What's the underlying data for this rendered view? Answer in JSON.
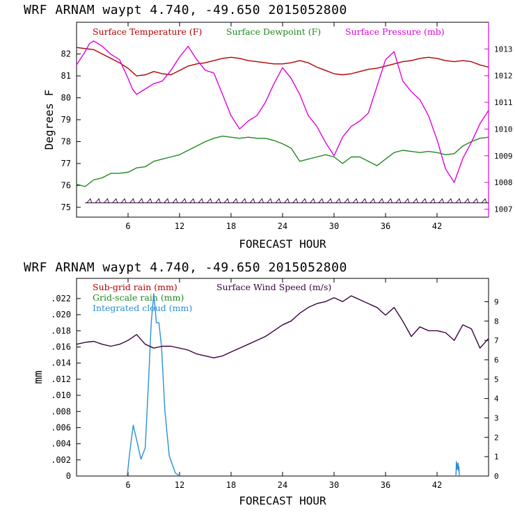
{
  "colors": {
    "temperature": "#b00000",
    "dewpoint": "#1e8a1e",
    "pressure": "#e000e0",
    "subgrid_rain": "#b00000",
    "gridscale_rain": "#1e8a1e",
    "cloud": "#2a8fd6",
    "wind": "#3a0040",
    "barb": "#2a0035"
  },
  "chart_data": [
    {
      "type": "line",
      "title": "WRF   ARNAM waypt     4.740, -49.650  2015052800",
      "xlabel": "FORECAST HOUR",
      "ylabel": "Degrees F",
      "x_ticks": [
        6,
        12,
        18,
        24,
        30,
        36,
        42
      ],
      "xlim": [
        0,
        48
      ],
      "y_ticks": [
        75,
        76,
        77,
        78,
        79,
        80,
        81,
        82
      ],
      "ylim": [
        74.55,
        83.45
      ],
      "y2_ticks": [
        1007,
        1008,
        1009,
        1010,
        1011,
        1012,
        1013
      ],
      "y2lim": [
        1006.7,
        1014.0
      ],
      "legend": [
        "Surface Temperature (F)",
        "Surface Dewpoint (F)",
        "Surface Pressure (mb)"
      ],
      "wind_barbs_row_value": 75.2,
      "series": [
        {
          "name": "Surface Temperature (F)",
          "axis": "left",
          "x": [
            0,
            1,
            2,
            3,
            4,
            5,
            6,
            7,
            8,
            9,
            10,
            11,
            12,
            13,
            14,
            15,
            16,
            17,
            18,
            19,
            20,
            21,
            22,
            23,
            24,
            25,
            26,
            27,
            28,
            29,
            30,
            31,
            32,
            33,
            34,
            35,
            36,
            37,
            38,
            39,
            40,
            41,
            42,
            43,
            44,
            45,
            46,
            47,
            48
          ],
          "values": [
            82.3,
            82.25,
            82.2,
            82.0,
            81.8,
            81.6,
            81.35,
            81.0,
            81.05,
            81.2,
            81.1,
            81.05,
            81.25,
            81.45,
            81.55,
            81.6,
            81.7,
            81.8,
            81.85,
            81.8,
            81.7,
            81.65,
            81.6,
            81.55,
            81.55,
            81.6,
            81.7,
            81.6,
            81.4,
            81.25,
            81.1,
            81.05,
            81.1,
            81.2,
            81.3,
            81.35,
            81.45,
            81.55,
            81.65,
            81.7,
            81.8,
            81.85,
            81.8,
            81.7,
            81.65,
            81.7,
            81.65,
            81.5,
            81.4
          ]
        },
        {
          "name": "Surface Dewpoint (F)",
          "axis": "left",
          "x": [
            0,
            1,
            2,
            3,
            4,
            5,
            6,
            7,
            8,
            9,
            10,
            11,
            12,
            13,
            14,
            15,
            16,
            17,
            18,
            19,
            20,
            21,
            22,
            23,
            24,
            25,
            26,
            27,
            28,
            29,
            30,
            31,
            32,
            33,
            34,
            35,
            36,
            37,
            38,
            39,
            40,
            41,
            42,
            43,
            44,
            45,
            46,
            47,
            48
          ],
          "values": [
            76.05,
            75.95,
            76.25,
            76.35,
            76.55,
            76.55,
            76.6,
            76.8,
            76.85,
            77.1,
            77.2,
            77.3,
            77.4,
            77.6,
            77.8,
            78.0,
            78.15,
            78.25,
            78.2,
            78.15,
            78.2,
            78.15,
            78.15,
            78.05,
            77.9,
            77.7,
            77.1,
            77.2,
            77.3,
            77.4,
            77.3,
            77.0,
            77.3,
            77.3,
            77.1,
            76.9,
            77.2,
            77.5,
            77.6,
            77.55,
            77.5,
            77.55,
            77.5,
            77.4,
            77.45,
            77.8,
            78.0,
            78.15,
            78.2
          ]
        },
        {
          "name": "Surface Pressure (mb)",
          "axis": "right",
          "x": [
            0,
            1,
            1.5,
            2,
            3,
            4,
            5,
            6,
            6.5,
            7,
            8,
            9,
            10,
            11,
            12,
            13,
            14,
            15,
            16,
            17,
            18,
            19,
            20,
            21,
            22,
            23,
            24,
            25,
            26,
            27,
            28,
            29,
            30,
            31,
            32,
            33,
            34,
            35,
            36,
            37,
            38,
            39,
            40,
            41,
            42,
            43,
            44,
            45,
            46,
            47,
            48
          ],
          "values": [
            1012.4,
            1012.9,
            1013.2,
            1013.3,
            1013.1,
            1012.8,
            1012.6,
            1011.9,
            1011.5,
            1011.3,
            1011.5,
            1011.7,
            1011.8,
            1012.2,
            1012.7,
            1013.1,
            1012.6,
            1012.2,
            1012.1,
            1011.3,
            1010.5,
            1010.0,
            1010.3,
            1010.5,
            1011.0,
            1011.7,
            1012.3,
            1011.9,
            1011.3,
            1010.5,
            1010.1,
            1009.5,
            1009.0,
            1009.7,
            1010.1,
            1010.3,
            1010.6,
            1011.6,
            1012.6,
            1012.9,
            1011.8,
            1011.4,
            1011.1,
            1010.5,
            1009.6,
            1008.5,
            1008.0,
            1008.9,
            1009.5,
            1010.2,
            1010.7
          ]
        }
      ]
    },
    {
      "type": "line",
      "title": "WRF   ARNAM waypt     4.740, -49.650  2015052800",
      "xlabel": "FORECAST HOUR",
      "ylabel": "mm",
      "x_ticks": [
        6,
        12,
        18,
        24,
        30,
        36,
        42
      ],
      "xlim": [
        0,
        48
      ],
      "y_ticks": [
        0,
        0.002,
        0.004,
        0.006,
        0.008,
        0.01,
        0.012,
        0.014,
        0.016,
        0.018,
        0.02,
        0.022
      ],
      "y_tick_labels": [
        "0",
        ".002",
        ".004",
        ".006",
        ".008",
        ".010",
        ".012",
        ".014",
        ".016",
        ".018",
        ".020",
        ".022"
      ],
      "ylim": [
        0,
        0.0245
      ],
      "y2_ticks": [
        0,
        1,
        2,
        3,
        4,
        5,
        6,
        7,
        8,
        9
      ],
      "y2lim": [
        0,
        10.2
      ],
      "legend": [
        "Sub-grid rain (mm)",
        "Grid-scale rain (mm)",
        "Integrated cloud (mm)",
        "Surface Wind Speed (m/s)"
      ],
      "series": [
        {
          "name": "Integrated cloud (mm)",
          "axis": "left",
          "x": [
            5.9,
            6.2,
            6.6,
            7.0,
            7.5,
            8.0,
            8.4,
            8.7,
            9.0,
            9.3,
            9.6,
            9.9,
            10.3,
            10.8,
            11.5,
            12.0
          ],
          "values": [
            0,
            0.003,
            0.0063,
            0.0045,
            0.0021,
            0.0035,
            0.012,
            0.019,
            0.0226,
            0.019,
            0.019,
            0.016,
            0.008,
            0.0025,
            0.0004,
            0
          ]
        },
        {
          "name": "Integrated cloud (mm) late",
          "axis": "left",
          "x": [
            44.2,
            44.25,
            44.3,
            44.35,
            44.4,
            44.45,
            44.5,
            44.55,
            44.6
          ],
          "values": [
            0,
            0.0018,
            0.0008,
            0.0015,
            0.0009,
            0.0016,
            0.0007,
            0.0012,
            0
          ]
        },
        {
          "name": "Surface Wind Speed (m/s)",
          "axis": "right",
          "x": [
            0,
            1,
            2,
            3,
            4,
            5,
            6,
            7,
            8,
            9,
            10,
            11,
            12,
            13,
            14,
            15,
            16,
            17,
            18,
            19,
            20,
            21,
            22,
            23,
            24,
            25,
            26,
            27,
            28,
            29,
            30,
            31,
            32,
            33,
            34,
            35,
            36,
            37,
            38,
            39,
            40,
            41,
            42,
            43,
            44,
            45,
            46,
            47,
            48
          ],
          "values": [
            6.8,
            6.9,
            6.95,
            6.8,
            6.7,
            6.8,
            7.0,
            7.3,
            6.8,
            6.6,
            6.7,
            6.7,
            6.6,
            6.5,
            6.3,
            6.2,
            6.1,
            6.2,
            6.4,
            6.6,
            6.8,
            7.0,
            7.2,
            7.5,
            7.8,
            8.0,
            8.4,
            8.7,
            8.9,
            9.0,
            9.2,
            9.0,
            9.3,
            9.1,
            8.9,
            8.7,
            8.3,
            8.7,
            8.0,
            7.2,
            7.7,
            7.5,
            7.5,
            7.4,
            7.0,
            7.8,
            7.6,
            6.6,
            7.1
          ]
        }
      ]
    }
  ]
}
